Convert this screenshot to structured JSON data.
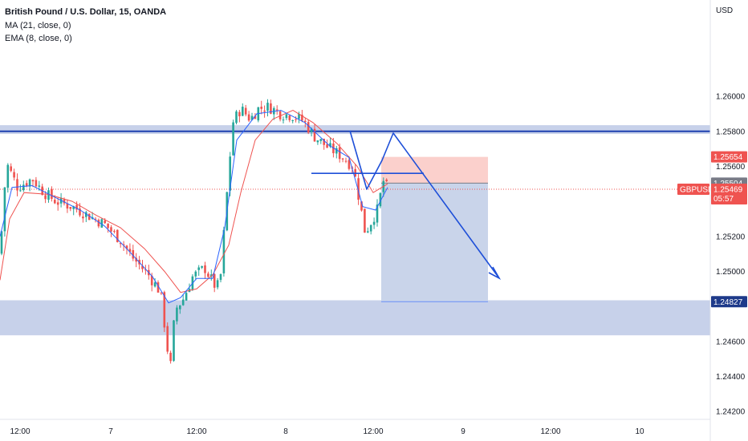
{
  "header": {
    "title": "British Pound / U.S. Dollar, 15, OANDA",
    "ma": "MA (21, close, 0)",
    "ema": "EMA (8, close, 0)"
  },
  "chart_data": {
    "type": "candlestick",
    "currency": "USD",
    "symbol": "GBPUSD",
    "y_axis_ticks": [
      "1.26000",
      "1.25800",
      "1.25600",
      "1.25200",
      "1.25000",
      "1.24600",
      "1.24400",
      "1.24200"
    ],
    "x_axis_ticks": [
      "12:00",
      "7",
      "12:00",
      "8",
      "12:00",
      "9",
      "12:00",
      "10"
    ],
    "ylim": [
      1.24155,
      1.26495
    ],
    "price_tags": [
      {
        "label": "1.25654",
        "price": 1.25654,
        "color": "#ef5350"
      },
      {
        "label": "1.25504",
        "price": 1.25504,
        "color": "#787b86"
      },
      {
        "label": "GBPUSD",
        "price": 1.25469,
        "color": "#ef5350"
      },
      {
        "label": "1.25469",
        "price": 1.25469,
        "color": "#ef5350"
      },
      {
        "label": "05:57",
        "price": 1.25469,
        "color": "#ef5350"
      },
      {
        "label": "1.24827",
        "price": 1.24827,
        "color": "#1e3a8a"
      }
    ],
    "resistance_zone": {
      "from": 1.25785,
      "to": 1.25835,
      "line": 1.258
    },
    "support_zone": {
      "from": 1.24635,
      "to": 1.24835
    },
    "short_position": {
      "entry": 1.25504,
      "stop": 1.25654,
      "target": 1.24827
    },
    "neckline_price": 1.2556,
    "colors": {
      "up": "#26a69a",
      "down": "#ef5350",
      "ma": "#ef5350",
      "ema": "#2962ff",
      "zone_fill": "#c7d1ea",
      "zone_line": "#1e40af",
      "profit_fill": "#c9d4ea",
      "stop_fill": "#fbd0cc",
      "drawing": "#1e4fd8"
    },
    "price_path": [
      [
        0,
        1.251
      ],
      [
        8,
        1.2562
      ],
      [
        22,
        1.2548
      ],
      [
        40,
        1.2553
      ],
      [
        55,
        1.2545
      ],
      [
        70,
        1.254
      ],
      [
        90,
        1.2537
      ],
      [
        110,
        1.2532
      ],
      [
        130,
        1.2527
      ],
      [
        150,
        1.2518
      ],
      [
        165,
        1.2508
      ],
      [
        185,
        1.2498
      ],
      [
        200,
        1.2488
      ],
      [
        207,
        1.2462
      ],
      [
        212,
        1.2443
      ],
      [
        218,
        1.2478
      ],
      [
        228,
        1.2484
      ],
      [
        240,
        1.2497
      ],
      [
        255,
        1.2502
      ],
      [
        270,
        1.249
      ],
      [
        275,
        1.2498
      ],
      [
        282,
        1.254
      ],
      [
        290,
        1.2585
      ],
      [
        300,
        1.2593
      ],
      [
        312,
        1.2587
      ],
      [
        322,
        1.2593
      ],
      [
        335,
        1.2594
      ],
      [
        350,
        1.259
      ],
      [
        365,
        1.2589
      ],
      [
        378,
        1.2586
      ],
      [
        392,
        1.2577
      ],
      [
        408,
        1.2571
      ],
      [
        422,
        1.2567
      ],
      [
        440,
        1.256
      ],
      [
        450,
        1.2535
      ],
      [
        455,
        1.2522
      ],
      [
        462,
        1.2528
      ],
      [
        470,
        1.2535
      ],
      [
        478,
        1.2552
      ],
      [
        483,
        1.2547
      ]
    ],
    "ma_path": [
      [
        0,
        1.2495
      ],
      [
        12,
        1.253
      ],
      [
        30,
        1.2545
      ],
      [
        60,
        1.2544
      ],
      [
        90,
        1.254
      ],
      [
        120,
        1.2532
      ],
      [
        150,
        1.2525
      ],
      [
        180,
        1.2513
      ],
      [
        205,
        1.25
      ],
      [
        225,
        1.2488
      ],
      [
        245,
        1.249
      ],
      [
        265,
        1.2498
      ],
      [
        285,
        1.2515
      ],
      [
        300,
        1.2545
      ],
      [
        318,
        1.2575
      ],
      [
        340,
        1.2587
      ],
      [
        365,
        1.2592
      ],
      [
        390,
        1.2585
      ],
      [
        420,
        1.2573
      ],
      [
        445,
        1.256
      ],
      [
        465,
        1.2545
      ],
      [
        483,
        1.255
      ]
    ],
    "ema_path": [
      [
        0,
        1.252
      ],
      [
        15,
        1.2548
      ],
      [
        40,
        1.2549
      ],
      [
        70,
        1.2542
      ],
      [
        100,
        1.2535
      ],
      [
        130,
        1.2526
      ],
      [
        160,
        1.2512
      ],
      [
        190,
        1.2497
      ],
      [
        210,
        1.2482
      ],
      [
        225,
        1.2485
      ],
      [
        245,
        1.2496
      ],
      [
        265,
        1.2496
      ],
      [
        280,
        1.2525
      ],
      [
        295,
        1.2575
      ],
      [
        320,
        1.259
      ],
      [
        350,
        1.2592
      ],
      [
        380,
        1.2585
      ],
      [
        410,
        1.2572
      ],
      [
        435,
        1.2565
      ],
      [
        452,
        1.2537
      ],
      [
        468,
        1.2535
      ],
      [
        483,
        1.2548
      ]
    ]
  }
}
